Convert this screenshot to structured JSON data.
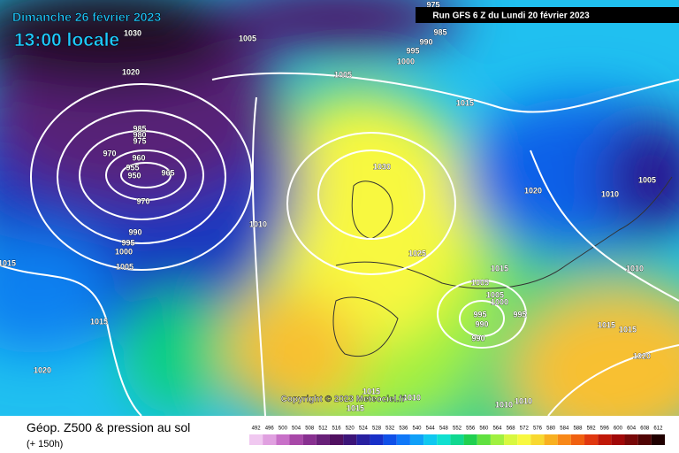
{
  "header": {
    "date": "Dimanche 26 février 2023",
    "local_time": "13:00 locale",
    "run": "Run GFS 6 Z du Lundi 20 février 2023"
  },
  "map": {
    "copyright": "Copyright © 2023 Meteociel.fr",
    "pressure_labels": [
      "975",
      "985",
      "990",
      "995",
      "1000",
      "1005",
      "1030",
      "1020",
      "1005",
      "1015",
      "985",
      "980",
      "975",
      "970",
      "960",
      "955",
      "950",
      "965",
      "970",
      "1030",
      "1020",
      "1010",
      "1005",
      "1010",
      "990",
      "995",
      "1000",
      "1005",
      "1015",
      "1025",
      "1015",
      "1005",
      "1005",
      "1000",
      "995",
      "995",
      "990",
      "990",
      "1010",
      "1015",
      "1015",
      "1020",
      "1015",
      "1020",
      "1015",
      "1010",
      "1015",
      "1010",
      "1010"
    ]
  },
  "footer": {
    "title": "Géop. Z500 & pression au sol",
    "lead_time": "(+ 150h)",
    "legend": [
      {
        "label": "492",
        "color": "#f0c8f0"
      },
      {
        "label": "496",
        "color": "#e0a0e0"
      },
      {
        "label": "500",
        "color": "#c870c8"
      },
      {
        "label": "504",
        "color": "#a848a8"
      },
      {
        "label": "508",
        "color": "#883090"
      },
      {
        "label": "512",
        "color": "#682078"
      },
      {
        "label": "516",
        "color": "#501060"
      },
      {
        "label": "520",
        "color": "#3c1478"
      },
      {
        "label": "524",
        "color": "#2820a0"
      },
      {
        "label": "528",
        "color": "#1830c8"
      },
      {
        "label": "532",
        "color": "#1050e8"
      },
      {
        "label": "536",
        "color": "#1078f8"
      },
      {
        "label": "540",
        "color": "#10a0f8"
      },
      {
        "label": "544",
        "color": "#10c8f0"
      },
      {
        "label": "548",
        "color": "#10e0d0"
      },
      {
        "label": "552",
        "color": "#10d890"
      },
      {
        "label": "556",
        "color": "#20d050"
      },
      {
        "label": "560",
        "color": "#60e040"
      },
      {
        "label": "564",
        "color": "#a0f040"
      },
      {
        "label": "568",
        "color": "#d8f840"
      },
      {
        "label": "572",
        "color": "#f8f840"
      },
      {
        "label": "576",
        "color": "#f8d830"
      },
      {
        "label": "580",
        "color": "#f8b020"
      },
      {
        "label": "584",
        "color": "#f88818"
      },
      {
        "label": "588",
        "color": "#f06010"
      },
      {
        "label": "592",
        "color": "#e03810"
      },
      {
        "label": "596",
        "color": "#c01808"
      },
      {
        "label": "600",
        "color": "#a00808"
      },
      {
        "label": "604",
        "color": "#780808"
      },
      {
        "label": "608",
        "color": "#500404"
      },
      {
        "label": "612",
        "color": "#200000"
      }
    ]
  }
}
